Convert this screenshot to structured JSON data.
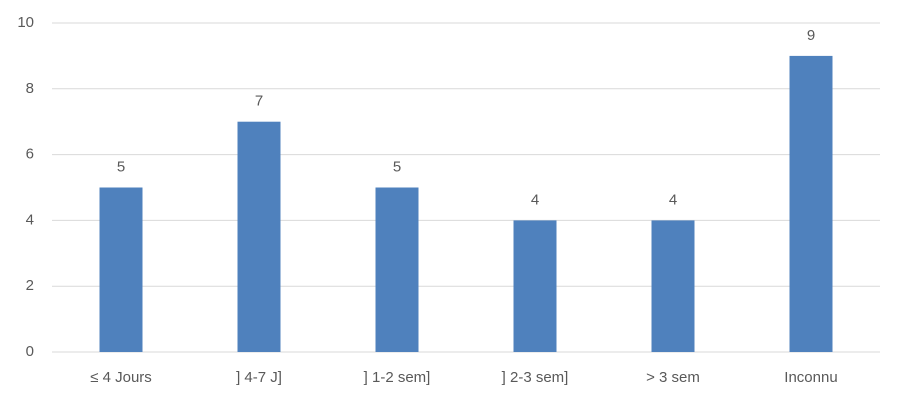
{
  "chart_data": {
    "type": "bar",
    "categories": [
      "≤ 4 Jours",
      "] 4-7 J]",
      "] 1-2 sem]",
      "] 2-3 sem]",
      "> 3 sem",
      "Inconnu"
    ],
    "values": [
      5,
      7,
      5,
      4,
      4,
      9
    ],
    "color": "#4f81bd",
    "ylim": [
      0,
      10
    ],
    "yticks": [
      0,
      2,
      4,
      6,
      8,
      10
    ],
    "grid": true
  }
}
